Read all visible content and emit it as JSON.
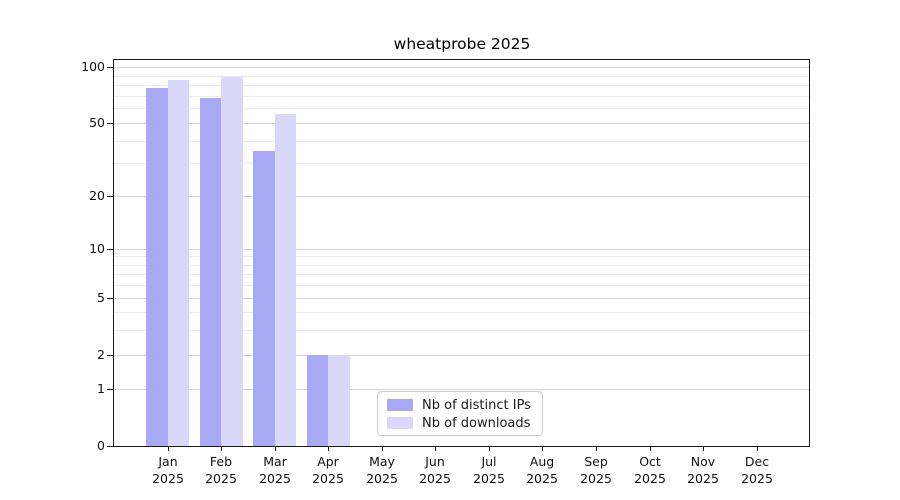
{
  "title": "wheatprobe 2025",
  "chart_data": {
    "type": "bar",
    "title": "wheatprobe 2025",
    "categories": [
      "Jan",
      "Feb",
      "Mar",
      "Apr",
      "May",
      "Jun",
      "Jul",
      "Aug",
      "Sep",
      "Oct",
      "Nov",
      "Dec"
    ],
    "x_sublabel": "2025",
    "series": [
      {
        "name": "Nb of distinct IPs",
        "color": "#a9a8f5",
        "values": [
          77,
          68,
          35,
          2,
          null,
          null,
          null,
          null,
          null,
          null,
          null,
          null
        ]
      },
      {
        "name": "Nb of downloads",
        "color": "#d9d8f9",
        "values": [
          85,
          88,
          56,
          2,
          null,
          null,
          null,
          null,
          null,
          null,
          null,
          null
        ]
      }
    ],
    "y_axis": {
      "scale": "symlog",
      "major_ticks": [
        0,
        1,
        2,
        5,
        10,
        20,
        50,
        100
      ],
      "minor_ticks": [
        3,
        4,
        6,
        7,
        8,
        9,
        30,
        40,
        60,
        70,
        80,
        90
      ],
      "ylim": [
        0,
        100
      ]
    },
    "legend": {
      "position": "bottom-center"
    },
    "grid": true,
    "xlabel": "",
    "ylabel": ""
  },
  "colors": {
    "bar_distinct_ips": "#a9a8f5",
    "bar_downloads": "#d9d8f9",
    "grid_major": "#d3d3d3",
    "grid_minor": "#ebebeb",
    "axis": "#1a1a1a",
    "background": "#ffffff"
  }
}
